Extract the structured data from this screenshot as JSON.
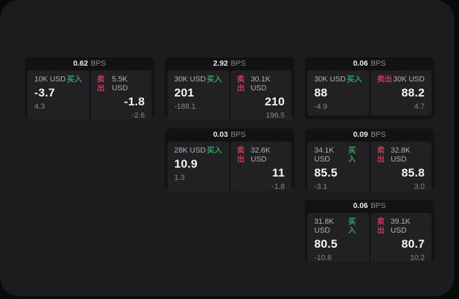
{
  "meta": {
    "unit_label": "BPS",
    "buy_label": "买入",
    "sell_label": "卖出",
    "colors": {
      "background": "#0a0a0b",
      "panel": "#1c1c1e",
      "card": "#121214",
      "side_panel": "#212124",
      "buy_green": "#35a05e",
      "sell_red": "#c93a55"
    }
  },
  "cards": [
    {
      "bps": "0.62",
      "unit": "BPS",
      "buy": {
        "amount": "10K USD",
        "side": "买入",
        "price": "-3.7",
        "delta": "4.3"
      },
      "sell": {
        "side": "卖出",
        "amount": "5.5K USD",
        "price": "-1.8",
        "delta": "-2.6"
      }
    },
    {
      "bps": "2.92",
      "unit": "BPS",
      "buy": {
        "amount": "30K USD",
        "side": "买入",
        "price": "201",
        "delta": "-188.1"
      },
      "sell": {
        "side": "卖出",
        "amount": "30.1K USD",
        "price": "210",
        "delta": "196.5"
      }
    },
    {
      "bps": "0.06",
      "unit": "BPS",
      "buy": {
        "amount": "30K USD",
        "side": "买入",
        "price": "88",
        "delta": "-4.9"
      },
      "sell": {
        "side": "卖出",
        "amount": "30K USD",
        "price": "88.2",
        "delta": "4.7"
      }
    },
    {
      "bps": "0.03",
      "unit": "BPS",
      "buy": {
        "amount": "28K USD",
        "side": "买入",
        "price": "10.9",
        "delta": "1.3"
      },
      "sell": {
        "side": "卖出",
        "amount": "32.6K USD",
        "price": "11",
        "delta": "-1.8"
      }
    },
    {
      "bps": "0.09",
      "unit": "BPS",
      "buy": {
        "amount": "34.1K USD",
        "side": "买入",
        "price": "85.5",
        "delta": "-3.1"
      },
      "sell": {
        "side": "卖出",
        "amount": "32.8K USD",
        "price": "85.8",
        "delta": "3.0"
      }
    },
    {
      "bps": "0.06",
      "unit": "BPS",
      "buy": {
        "amount": "31.8K USD",
        "side": "买入",
        "price": "80.5",
        "delta": "-10.8"
      },
      "sell": {
        "side": "卖出",
        "amount": "39.1K USD",
        "price": "80.7",
        "delta": "10.2"
      }
    }
  ]
}
